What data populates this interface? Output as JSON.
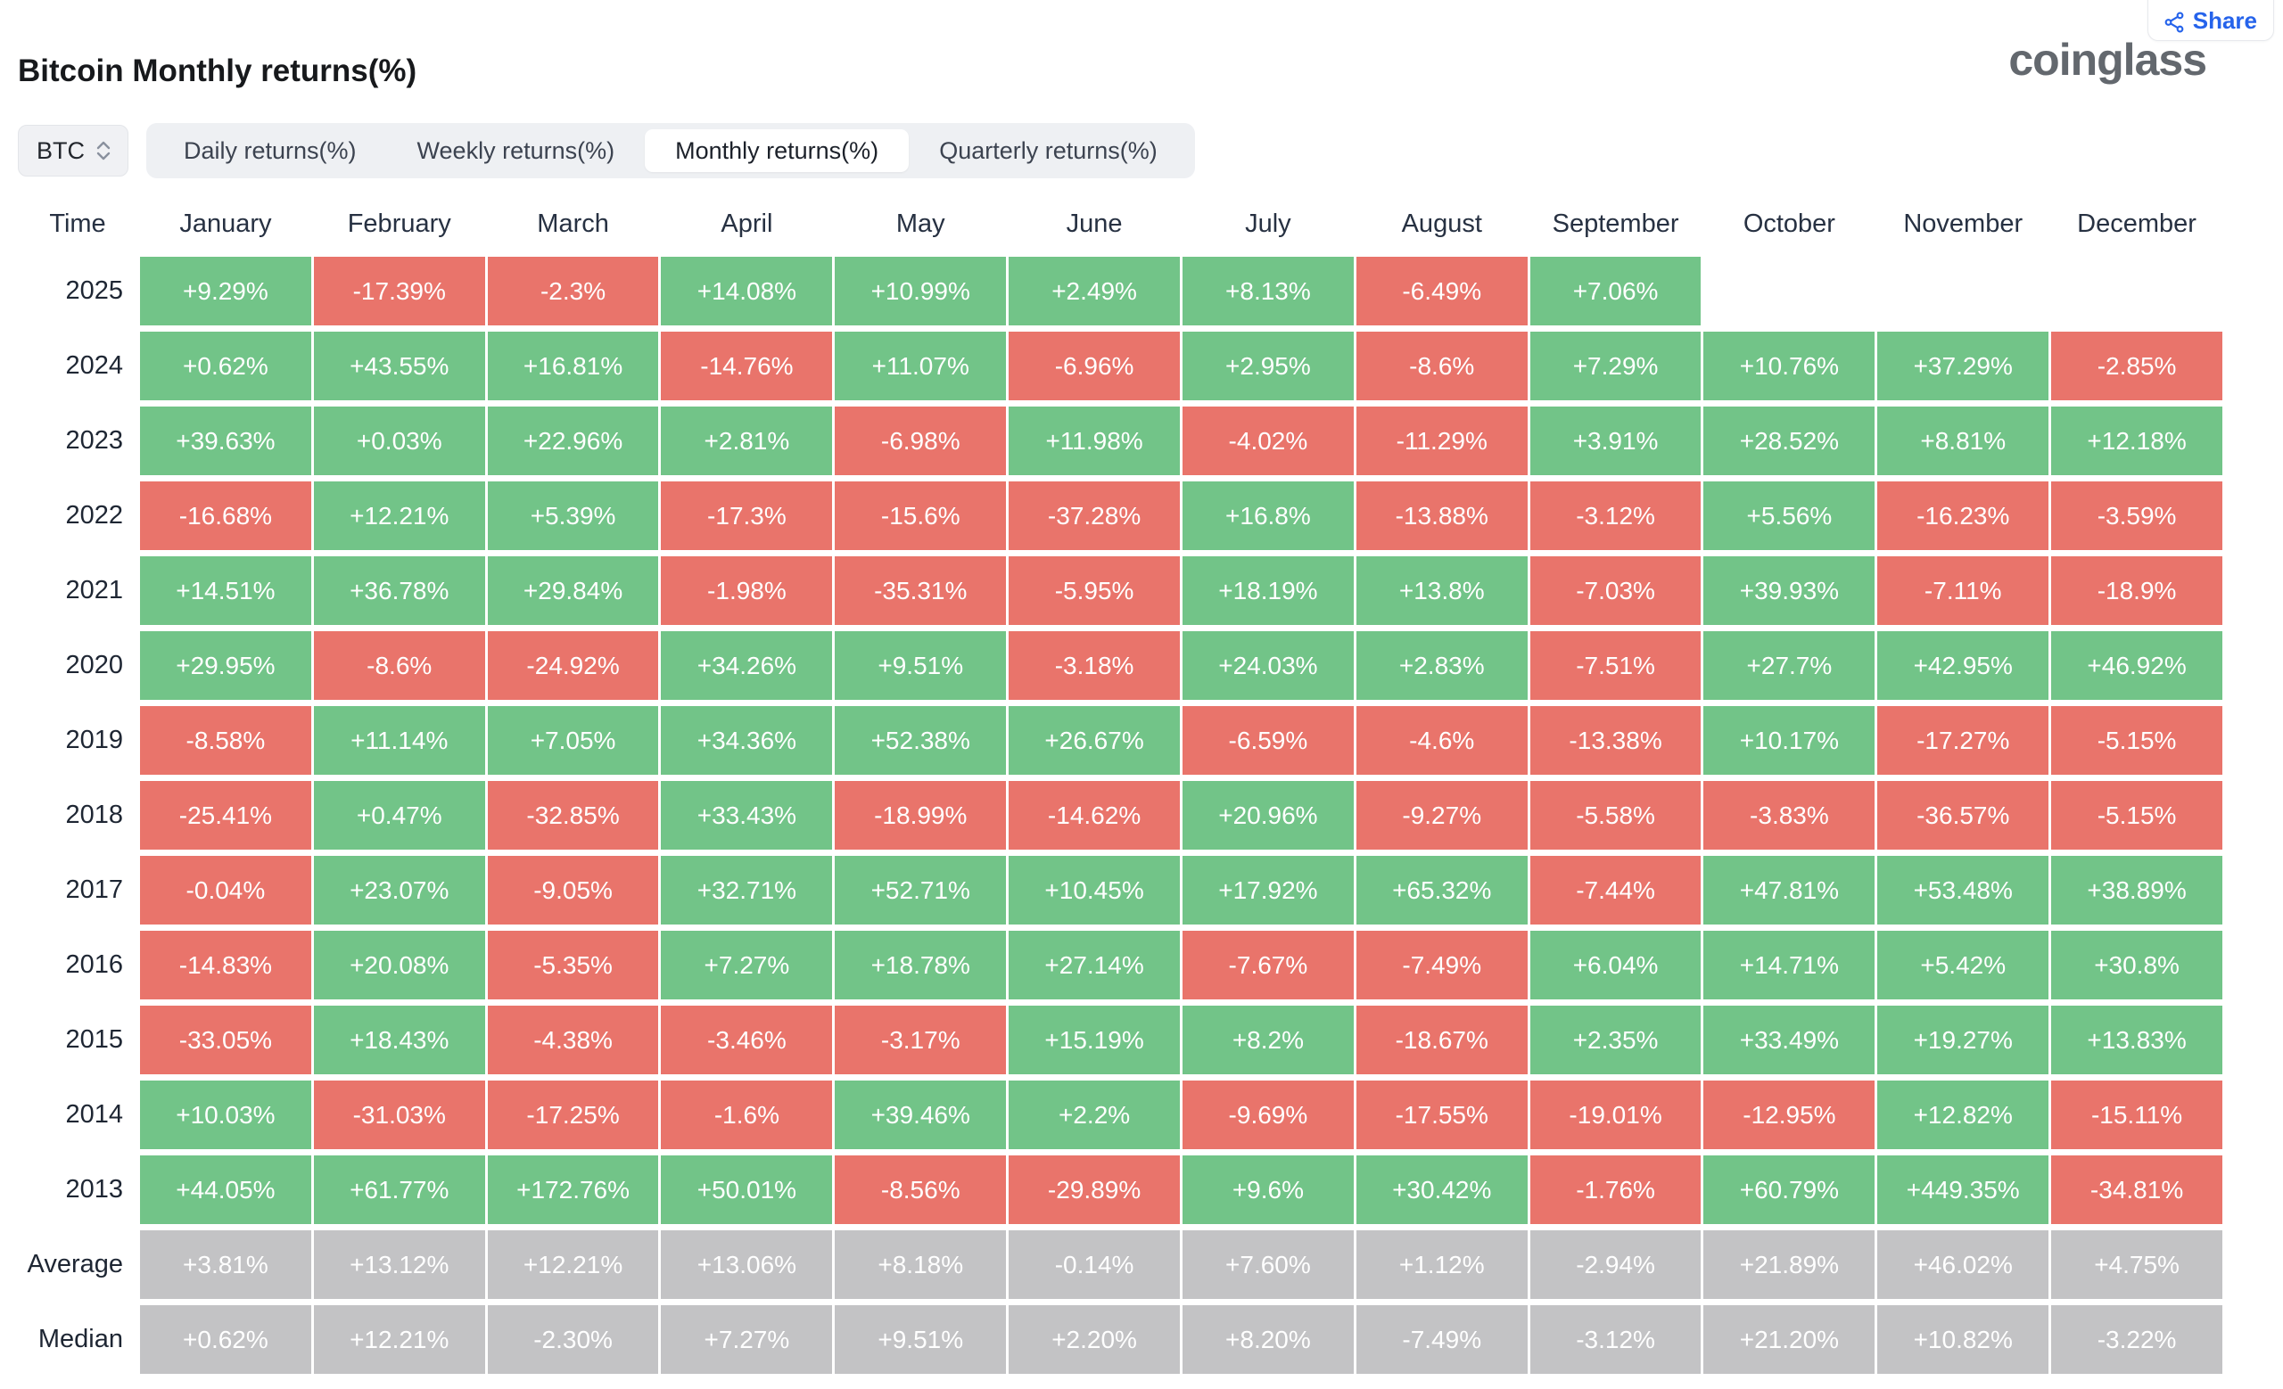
{
  "header": {
    "title": "Bitcoin Monthly returns(%)",
    "logo_text": "coinglass",
    "share_label": "Share"
  },
  "controls": {
    "symbol_select": {
      "value": "BTC"
    },
    "tabs": [
      {
        "label": "Daily returns(%)",
        "active": false
      },
      {
        "label": "Weekly returns(%)",
        "active": false
      },
      {
        "label": "Monthly returns(%)",
        "active": true
      },
      {
        "label": "Quarterly returns(%)",
        "active": false
      }
    ]
  },
  "table": {
    "columns": [
      "Time",
      "January",
      "February",
      "March",
      "April",
      "May",
      "June",
      "July",
      "August",
      "September",
      "October",
      "November",
      "December"
    ],
    "rows": [
      {
        "time": "2025",
        "type": "year",
        "values": [
          "+9.29%",
          "-17.39%",
          "-2.3%",
          "+14.08%",
          "+10.99%",
          "+2.49%",
          "+8.13%",
          "-6.49%",
          "+7.06%",
          "",
          "",
          ""
        ]
      },
      {
        "time": "2024",
        "type": "year",
        "values": [
          "+0.62%",
          "+43.55%",
          "+16.81%",
          "-14.76%",
          "+11.07%",
          "-6.96%",
          "+2.95%",
          "-8.6%",
          "+7.29%",
          "+10.76%",
          "+37.29%",
          "-2.85%"
        ]
      },
      {
        "time": "2023",
        "type": "year",
        "values": [
          "+39.63%",
          "+0.03%",
          "+22.96%",
          "+2.81%",
          "-6.98%",
          "+11.98%",
          "-4.02%",
          "-11.29%",
          "+3.91%",
          "+28.52%",
          "+8.81%",
          "+12.18%"
        ]
      },
      {
        "time": "2022",
        "type": "year",
        "values": [
          "-16.68%",
          "+12.21%",
          "+5.39%",
          "-17.3%",
          "-15.6%",
          "-37.28%",
          "+16.8%",
          "-13.88%",
          "-3.12%",
          "+5.56%",
          "-16.23%",
          "-3.59%"
        ]
      },
      {
        "time": "2021",
        "type": "year",
        "values": [
          "+14.51%",
          "+36.78%",
          "+29.84%",
          "-1.98%",
          "-35.31%",
          "-5.95%",
          "+18.19%",
          "+13.8%",
          "-7.03%",
          "+39.93%",
          "-7.11%",
          "-18.9%"
        ]
      },
      {
        "time": "2020",
        "type": "year",
        "values": [
          "+29.95%",
          "-8.6%",
          "-24.92%",
          "+34.26%",
          "+9.51%",
          "-3.18%",
          "+24.03%",
          "+2.83%",
          "-7.51%",
          "+27.7%",
          "+42.95%",
          "+46.92%"
        ]
      },
      {
        "time": "2019",
        "type": "year",
        "values": [
          "-8.58%",
          "+11.14%",
          "+7.05%",
          "+34.36%",
          "+52.38%",
          "+26.67%",
          "-6.59%",
          "-4.6%",
          "-13.38%",
          "+10.17%",
          "-17.27%",
          "-5.15%"
        ]
      },
      {
        "time": "2018",
        "type": "year",
        "values": [
          "-25.41%",
          "+0.47%",
          "-32.85%",
          "+33.43%",
          "-18.99%",
          "-14.62%",
          "+20.96%",
          "-9.27%",
          "-5.58%",
          "-3.83%",
          "-36.57%",
          "-5.15%"
        ]
      },
      {
        "time": "2017",
        "type": "year",
        "values": [
          "-0.04%",
          "+23.07%",
          "-9.05%",
          "+32.71%",
          "+52.71%",
          "+10.45%",
          "+17.92%",
          "+65.32%",
          "-7.44%",
          "+47.81%",
          "+53.48%",
          "+38.89%"
        ]
      },
      {
        "time": "2016",
        "type": "year",
        "values": [
          "-14.83%",
          "+20.08%",
          "-5.35%",
          "+7.27%",
          "+18.78%",
          "+27.14%",
          "-7.67%",
          "-7.49%",
          "+6.04%",
          "+14.71%",
          "+5.42%",
          "+30.8%"
        ]
      },
      {
        "time": "2015",
        "type": "year",
        "values": [
          "-33.05%",
          "+18.43%",
          "-4.38%",
          "-3.46%",
          "-3.17%",
          "+15.19%",
          "+8.2%",
          "-18.67%",
          "+2.35%",
          "+33.49%",
          "+19.27%",
          "+13.83%"
        ]
      },
      {
        "time": "2014",
        "type": "year",
        "values": [
          "+10.03%",
          "-31.03%",
          "-17.25%",
          "-1.6%",
          "+39.46%",
          "+2.2%",
          "-9.69%",
          "-17.55%",
          "-19.01%",
          "-12.95%",
          "+12.82%",
          "-15.11%"
        ]
      },
      {
        "time": "2013",
        "type": "year",
        "values": [
          "+44.05%",
          "+61.77%",
          "+172.76%",
          "+50.01%",
          "-8.56%",
          "-29.89%",
          "+9.6%",
          "+30.42%",
          "-1.76%",
          "+60.79%",
          "+449.35%",
          "-34.81%"
        ]
      },
      {
        "time": "Average",
        "type": "summary",
        "values": [
          "+3.81%",
          "+13.12%",
          "+12.21%",
          "+13.06%",
          "+8.18%",
          "-0.14%",
          "+7.60%",
          "+1.12%",
          "-2.94%",
          "+21.89%",
          "+46.02%",
          "+4.75%"
        ]
      },
      {
        "time": "Median",
        "type": "summary",
        "values": [
          "+0.62%",
          "+12.21%",
          "-2.30%",
          "+7.27%",
          "+9.51%",
          "+2.20%",
          "+8.20%",
          "-7.49%",
          "-3.12%",
          "+21.20%",
          "+10.82%",
          "-3.22%"
        ]
      }
    ]
  },
  "colors": {
    "positive": "#72c488",
    "negative": "#e9746b",
    "summary": "#c3c3c5",
    "accent_blue": "#2563eb"
  }
}
